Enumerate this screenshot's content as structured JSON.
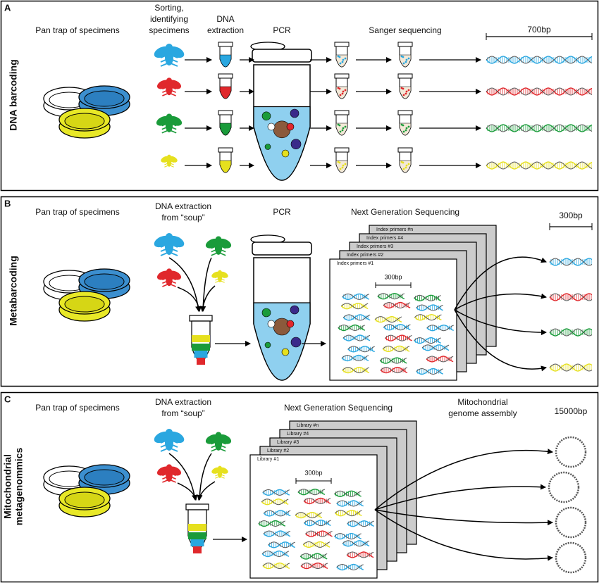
{
  "panels": [
    {
      "letter": "A",
      "side_label": [
        "DNA barcoding"
      ],
      "steps": [
        [
          "Pan trap of specimens"
        ],
        [
          "Sorting,",
          "identifying",
          "specimens"
        ],
        [
          "DNA",
          "extraction"
        ],
        [
          "PCR"
        ],
        [
          "Sanger sequencing"
        ]
      ],
      "scale": "700bp"
    },
    {
      "letter": "B",
      "side_label": [
        "Metabarcoding"
      ],
      "steps": [
        [
          "Pan trap of specimens"
        ],
        [
          "DNA extraction",
          "from “soup”"
        ],
        [
          "PCR"
        ],
        [
          "Next Generation Sequencing"
        ]
      ],
      "scale": "300bp",
      "inner_scale": "300bp",
      "cards": [
        "Index primers #n",
        "Index primers #4",
        "Index primers #3",
        "Index primers #2",
        "Index primers #1"
      ]
    },
    {
      "letter": "C",
      "side_label": [
        "Mitochondrial",
        "metagenommics"
      ],
      "steps": [
        [
          "Pan trap of specimens"
        ],
        [
          "DNA extraction",
          "from “soup”"
        ],
        [
          "Next Generation Sequencing"
        ],
        [
          "Mitochondrial",
          "genome assembly"
        ]
      ],
      "scale": "15000bp",
      "inner_scale": "300bp",
      "cards": [
        "Library #n",
        "Library #4",
        "Library #3",
        "Library #2",
        "Library #1"
      ]
    }
  ]
}
